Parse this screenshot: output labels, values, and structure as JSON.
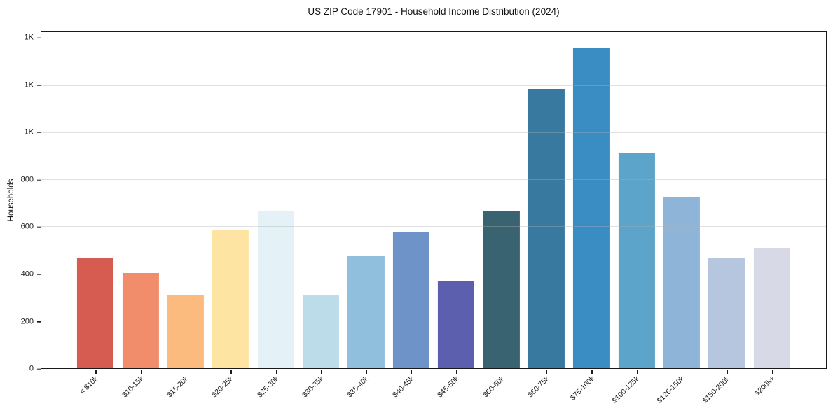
{
  "chart_data": {
    "type": "bar",
    "title": "US ZIP Code 17901 - Household Income Distribution (2024)",
    "xlabel": "",
    "ylabel": "Households",
    "categories": [
      "< $10k",
      "$10-15k",
      "$15-20k",
      "$20-25k",
      "$25-30k",
      "$30-35k",
      "$35-40k",
      "$40-45k",
      "$45-50k",
      "$50-60k",
      "$60-75k",
      "$75-100k",
      "$100-125k",
      "$125-150k",
      "$150-200k",
      "$200k+"
    ],
    "values": [
      471,
      405,
      308,
      590,
      670,
      308,
      475,
      578,
      370,
      669,
      1188,
      1361,
      913,
      726,
      469,
      508
    ],
    "bar_colors": [
      "#d65c52",
      "#f28d6c",
      "#fbbb7f",
      "#fde4a2",
      "#e4f1f6",
      "#bcdcea",
      "#90bedd",
      "#6e93c8",
      "#5c5fae",
      "#3a6372",
      "#38799f",
      "#398dc3",
      "#5ca4c9",
      "#8eb4d8",
      "#b6c6de",
      "#d8d9e7"
    ],
    "ylim": [
      0,
      1428
    ],
    "yticks": {
      "values": [
        0,
        200,
        400,
        600,
        800,
        1000,
        1200,
        1400
      ],
      "labels": [
        "0",
        "200",
        "400",
        "600",
        "800",
        "1K",
        "1K",
        "1K"
      ]
    },
    "grid": "horizontal",
    "legend": "none",
    "frame_color": "#1a1a1a",
    "background_color": "#ffffff"
  }
}
